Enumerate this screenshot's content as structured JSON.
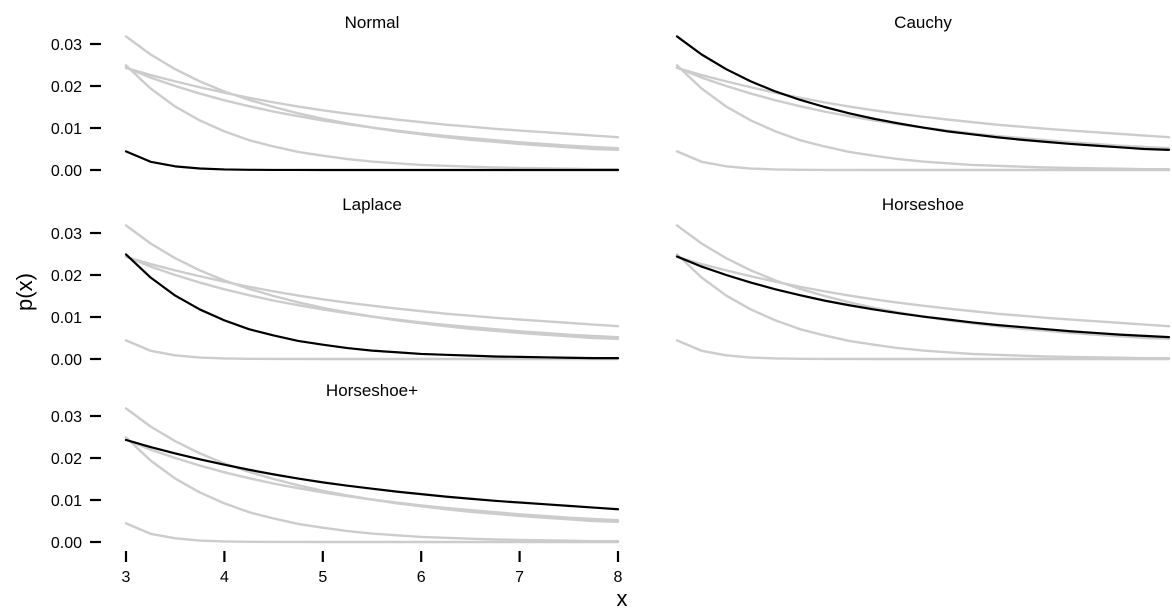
{
  "chart_data": {
    "type": "line",
    "xlabel": "x",
    "ylabel": "p(x)",
    "xlim": [
      3,
      8
    ],
    "ylim": [
      0,
      0.03
    ],
    "x_ticks": [
      "3",
      "4",
      "5",
      "6",
      "7",
      "8"
    ],
    "y_ticks": [
      "0.00",
      "0.01",
      "0.02",
      "0.03"
    ],
    "grid": false,
    "x": [
      3.0,
      3.25,
      3.5,
      3.75,
      4.0,
      4.25,
      4.5,
      4.75,
      5.0,
      5.25,
      5.5,
      5.75,
      6.0,
      6.25,
      6.5,
      6.75,
      7.0,
      7.25,
      7.5,
      7.75,
      8.0
    ],
    "curves": [
      {
        "id": "normal",
        "values": [
          0.00443,
          0.00196,
          0.00087,
          0.00035,
          0.00013,
          5e-05,
          2e-05,
          1e-05,
          0.0,
          0.0,
          0.0,
          0.0,
          0.0,
          0.0,
          0.0,
          0.0,
          0.0,
          0.0,
          0.0,
          0.0,
          0.0
        ]
      },
      {
        "id": "cauchy",
        "values": [
          0.0318,
          0.0275,
          0.024,
          0.0211,
          0.0187,
          0.0167,
          0.015,
          0.0135,
          0.0122,
          0.0111,
          0.0101,
          0.0092,
          0.0085,
          0.0078,
          0.0072,
          0.0067,
          0.0062,
          0.0058,
          0.0054,
          0.005,
          0.0048
        ]
      },
      {
        "id": "laplace",
        "values": [
          0.0249,
          0.0194,
          0.0151,
          0.0118,
          0.0092,
          0.0071,
          0.0056,
          0.0043,
          0.0034,
          0.0026,
          0.002,
          0.0016,
          0.0012,
          0.001,
          0.0008,
          0.0006,
          0.0005,
          0.0004,
          0.0003,
          0.0002,
          0.0002
        ]
      },
      {
        "id": "horseshoe",
        "values": [
          0.0244,
          0.022,
          0.02,
          0.0182,
          0.0166,
          0.0152,
          0.0139,
          0.0128,
          0.0118,
          0.0109,
          0.0101,
          0.0094,
          0.0087,
          0.0081,
          0.0076,
          0.0071,
          0.0066,
          0.0062,
          0.0058,
          0.0055,
          0.0052
        ]
      },
      {
        "id": "horseshoe_plus",
        "values": [
          0.0243,
          0.0226,
          0.0211,
          0.0197,
          0.0184,
          0.0172,
          0.0161,
          0.0151,
          0.0142,
          0.0134,
          0.0127,
          0.012,
          0.0114,
          0.0108,
          0.0103,
          0.0098,
          0.0094,
          0.009,
          0.0086,
          0.0082,
          0.0078
        ]
      }
    ],
    "panels": [
      {
        "title": "Normal",
        "highlight": "normal"
      },
      {
        "title": "Cauchy",
        "highlight": "cauchy"
      },
      {
        "title": "Laplace",
        "highlight": "laplace"
      },
      {
        "title": "Horseshoe",
        "highlight": "horseshoe"
      },
      {
        "title": "Horseshoe+",
        "highlight": "horseshoe_plus"
      }
    ],
    "colors": {
      "highlight": "#000000",
      "background_curves": "#cccccc"
    }
  }
}
